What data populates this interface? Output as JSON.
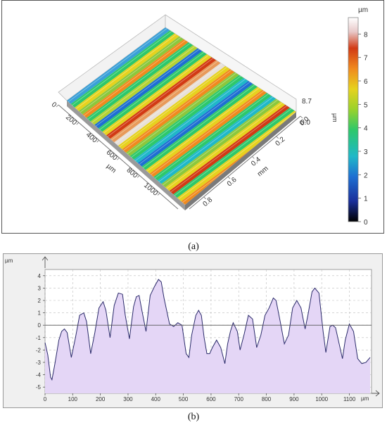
{
  "figure_a": {
    "label": "(a)",
    "colorbar": {
      "unit": "µm",
      "side_unit": "µm",
      "ticks": [
        "0",
        "1",
        "2",
        "3",
        "4",
        "5",
        "6",
        "7",
        "8"
      ],
      "colors": [
        "#000000",
        "#1a2f9a",
        "#1e6fd2",
        "#1fb8c8",
        "#2ec86a",
        "#9ad22c",
        "#e6d21e",
        "#f08a1e",
        "#d23a14",
        "#e8c8c8",
        "#ffffff"
      ]
    },
    "surface_axes": {
      "um_ticks": [
        "0",
        "200",
        "400",
        "600",
        "800",
        "1000"
      ],
      "um_label": "µm",
      "mm_ticks": [
        "0.0",
        "0.2",
        "0.4",
        "0.6",
        "0.8"
      ],
      "mm_label": "mm",
      "z_ticks": [
        "8.7",
        "0.0"
      ]
    },
    "stripe_colors": [
      "#3aa0d8",
      "#2ec86a",
      "#e6d21e",
      "#8cc83c",
      "#f08a1e",
      "#2ec86a",
      "#b4d232",
      "#1e6fd2",
      "#2ec86a",
      "#e6d21e",
      "#d23a14",
      "#e89a5a",
      "#e8e0d8",
      "#e6d21e",
      "#f08a1e",
      "#8cc83c",
      "#2ec86a",
      "#1fb8c8",
      "#1e6fd2",
      "#2ec86a",
      "#e6d21e",
      "#f08a1e",
      "#2ec86a",
      "#1fb8c8",
      "#8cc83c",
      "#e6d21e",
      "#d23a14",
      "#2ec86a",
      "#e6d21e",
      "#f08a1e"
    ]
  },
  "figure_b": {
    "label": "(b)"
  },
  "chart_data": {
    "type": "area",
    "ylabel": "µm",
    "xlabel": "µm",
    "xlim": [
      0,
      1180
    ],
    "ylim": [
      -5.5,
      4.5
    ],
    "xticks": [
      0,
      100,
      200,
      300,
      400,
      500,
      600,
      700,
      800,
      900,
      1000,
      1100
    ],
    "yticks": [
      -5,
      -4,
      -3,
      -2,
      -1,
      0,
      1,
      2,
      3,
      4
    ],
    "grid": true,
    "fill_color": "#e4d6f6",
    "line_color": "#2a2a6a",
    "x": [
      0,
      10,
      20,
      25,
      35,
      50,
      60,
      70,
      80,
      95,
      110,
      125,
      140,
      150,
      165,
      180,
      195,
      210,
      220,
      235,
      250,
      265,
      280,
      290,
      305,
      320,
      330,
      340,
      350,
      365,
      380,
      395,
      410,
      420,
      430,
      450,
      465,
      480,
      495,
      510,
      520,
      530,
      545,
      555,
      565,
      575,
      585,
      595,
      605,
      620,
      635,
      650,
      660,
      670,
      680,
      695,
      705,
      720,
      735,
      750,
      765,
      780,
      795,
      810,
      825,
      835,
      850,
      865,
      880,
      895,
      910,
      925,
      940,
      950,
      965,
      975,
      990,
      1005,
      1015,
      1030,
      1040,
      1050,
      1060,
      1075,
      1085,
      1100,
      1115,
      1130,
      1145,
      1160,
      1175
    ],
    "y": [
      -1.4,
      -2.4,
      -4.2,
      -4.4,
      -3.2,
      -1.2,
      -0.5,
      -0.3,
      -0.6,
      -2.6,
      -1.0,
      0.8,
      1.0,
      0.3,
      -2.3,
      -0.6,
      1.4,
      1.9,
      1.2,
      -1.0,
      1.6,
      2.6,
      2.5,
      0.8,
      -1.1,
      1.5,
      2.3,
      2.4,
      1.2,
      -0.5,
      2.4,
      3.1,
      3.7,
      3.5,
      2.2,
      0.1,
      -0.1,
      0.2,
      0.0,
      -2.3,
      -2.6,
      -0.8,
      0.8,
      1.2,
      0.8,
      -1.0,
      -2.3,
      -2.3,
      -1.8,
      -1.2,
      -1.8,
      -3.1,
      -1.5,
      -0.5,
      0.2,
      -0.5,
      -2.0,
      -0.7,
      0.8,
      0.5,
      -1.8,
      -0.8,
      0.8,
      1.4,
      2.2,
      2.0,
      0.3,
      -1.5,
      -0.8,
      1.4,
      2.0,
      1.4,
      -0.3,
      0.8,
      2.7,
      3.0,
      2.6,
      -0.5,
      -2.2,
      -0.1,
      0.0,
      -0.2,
      -1.2,
      -2.7,
      -1.2,
      0.1,
      -0.5,
      -2.7,
      -3.1,
      -3.0,
      -2.6
    ]
  }
}
